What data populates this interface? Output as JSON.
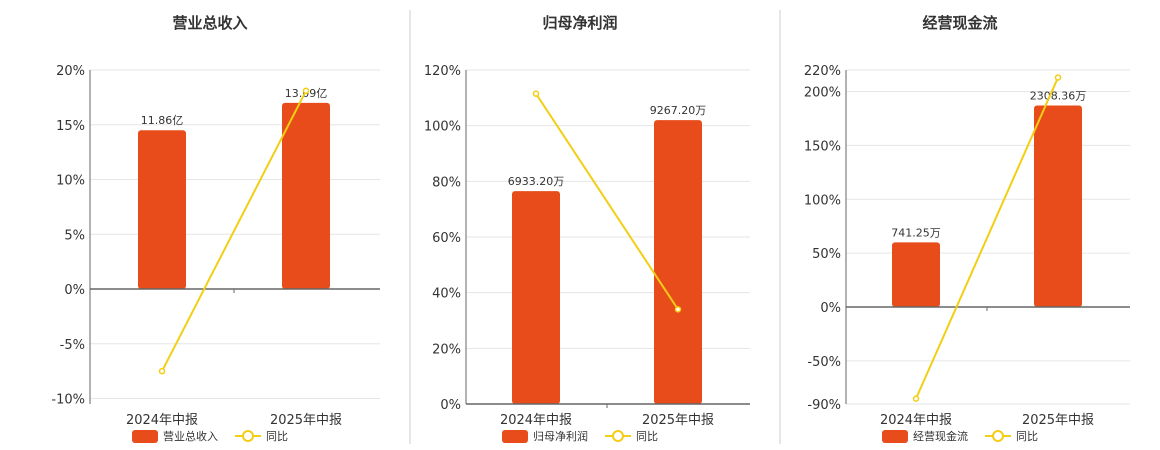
{
  "colors": {
    "bar": "#E84C1A",
    "line": "#F2CE14",
    "grid": "#E6E6E6",
    "axis": "#666666",
    "separator": "#CCCCCC"
  },
  "chart_data": [
    {
      "type": "bar",
      "title": "营业总收入",
      "categories": [
        "2024年中报",
        "2025年中报"
      ],
      "ylim": [
        -10.5,
        20
      ],
      "yticks": [
        20,
        15,
        10,
        5,
        0,
        -5,
        -10
      ],
      "ytick_labels": [
        "20%",
        "15%",
        "10%",
        "5%",
        "0%",
        "-5%",
        "-10%"
      ],
      "series": [
        {
          "name": "营业总收入",
          "kind": "bar",
          "values": [
            14.5,
            17.0
          ],
          "labels": [
            "11.86亿",
            "13.09亿"
          ]
        },
        {
          "name": "同比",
          "kind": "line",
          "values": [
            -7.5,
            18.1
          ]
        }
      ],
      "grid": true,
      "legend": "bottom"
    },
    {
      "type": "bar",
      "title": "归母净利润",
      "categories": [
        "2024年中报",
        "2025年中报"
      ],
      "ylim": [
        0,
        120
      ],
      "yticks": [
        120,
        100,
        80,
        60,
        40,
        20,
        0
      ],
      "ytick_labels": [
        "120%",
        "100%",
        "80%",
        "60%",
        "40%",
        "20%",
        "0%"
      ],
      "series": [
        {
          "name": "归母净利润",
          "kind": "bar",
          "values": [
            76.5,
            102.0
          ],
          "labels": [
            "6933.20万",
            "9267.20万"
          ]
        },
        {
          "name": "同比",
          "kind": "line",
          "values": [
            111.5,
            34.0
          ]
        }
      ],
      "grid": true,
      "legend": "bottom"
    },
    {
      "type": "bar",
      "title": "经营现金流",
      "categories": [
        "2024年中报",
        "2025年中报"
      ],
      "ylim": [
        -90,
        220
      ],
      "yticks": [
        220,
        200,
        150,
        100,
        50,
        0,
        -50,
        -90
      ],
      "ytick_labels": [
        "220%",
        "200%",
        "150%",
        "100%",
        "50%",
        "0%",
        "-50%",
        "-90%"
      ],
      "series": [
        {
          "name": "经营现金流",
          "kind": "bar",
          "values": [
            60.0,
            187.0
          ],
          "labels": [
            "741.25万",
            "2308.36万"
          ]
        },
        {
          "name": "同比",
          "kind": "line",
          "values": [
            -85.0,
            213.0
          ]
        }
      ],
      "grid": true,
      "legend": "bottom"
    }
  ]
}
